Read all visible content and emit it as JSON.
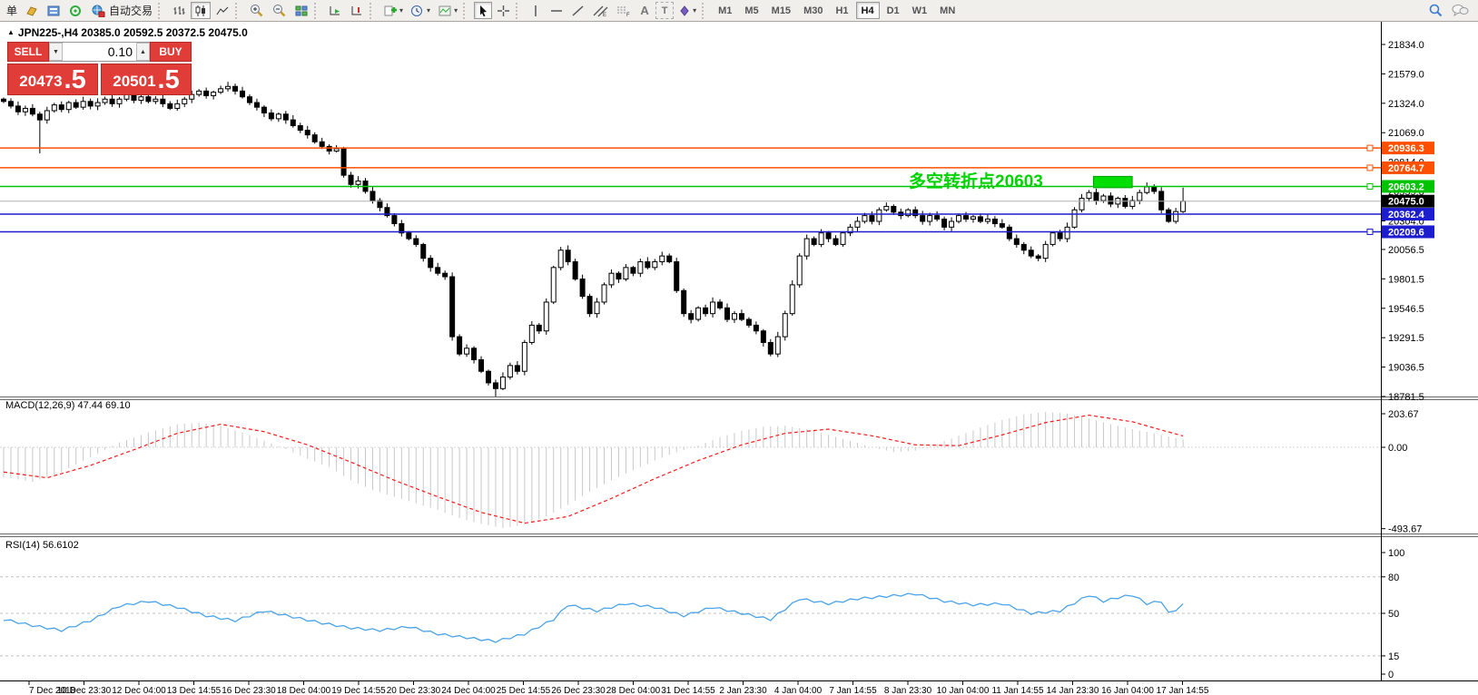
{
  "icons": {
    "dropdown": "▾",
    "collapse": "▲",
    "vol_down": "▼",
    "vol_up": "▲",
    "text_tool": "A",
    "label_tool": "T"
  },
  "toolbar": {
    "new_order_label": "单",
    "autotrading_label": "自动交易",
    "timeframes": [
      "M1",
      "M5",
      "M15",
      "M30",
      "H1",
      "H4",
      "D1",
      "W1",
      "MN"
    ],
    "active_timeframe": "H4"
  },
  "chart": {
    "title": "JPN225-,H4  20385.0 20592.5 20372.5 20475.0",
    "symbol": "JPN225-",
    "timeframe": "H4"
  },
  "trade_panel": {
    "sell_label": "SELL",
    "buy_label": "BUY",
    "volume": "0.10",
    "sell_price_int": "20473",
    "sell_price_dec": ".5",
    "buy_price_int": "20501",
    "buy_price_dec": ".5"
  },
  "annotation": {
    "text": "多空转折点20603",
    "color": "#00d300"
  },
  "indicators": {
    "macd_label": "MACD(12,26,9) 47.44 69.10",
    "rsi_label": "RSI(14) 56.6102"
  },
  "chart_data": [
    {
      "type": "candlestick",
      "title": "JPN225-,H4",
      "last_ohlc": {
        "open": 20385.0,
        "high": 20592.5,
        "low": 20372.5,
        "close": 20475.0
      },
      "closes": [
        21340,
        21300,
        21250,
        21280,
        21230,
        21180,
        21260,
        21310,
        21270,
        21330,
        21290,
        21340,
        21300,
        21330,
        21360,
        21320,
        21360,
        21400,
        21350,
        21380,
        21340,
        21360,
        21320,
        21280,
        21320,
        21360,
        21400,
        21430,
        21390,
        21420,
        21450,
        21470,
        21430,
        21380,
        21330,
        21290,
        21240,
        21190,
        21230,
        21180,
        21130,
        21090,
        21050,
        20990,
        20950,
        20910,
        20930,
        20700,
        20620,
        20650,
        20560,
        20480,
        20420,
        20350,
        20280,
        20200,
        20150,
        20100,
        19980,
        19900,
        19850,
        19820,
        19300,
        19150,
        19200,
        19100,
        19000,
        18900,
        18850,
        18950,
        19050,
        19000,
        19250,
        19400,
        19350,
        19600,
        19900,
        20050,
        19950,
        19800,
        19650,
        19500,
        19600,
        19750,
        19850,
        19800,
        19900,
        19850,
        19950,
        19900,
        19950,
        20000,
        19950,
        19700,
        19500,
        19450,
        19550,
        19500,
        19600,
        19550,
        19450,
        19500,
        19450,
        19400,
        19350,
        19250,
        19150,
        19300,
        19500,
        19750,
        20000,
        20150,
        20100,
        20200,
        20150,
        20100,
        20200,
        20250,
        20300,
        20350,
        20300,
        20400,
        20430,
        20380,
        20350,
        20400,
        20350,
        20300,
        20350,
        20320,
        20250,
        20300,
        20350,
        20320,
        20340,
        20300,
        20320,
        20280,
        20250,
        20150,
        20100,
        20050,
        20000,
        19980,
        20100,
        20200,
        20150,
        20250,
        20400,
        20500,
        20550,
        20480,
        20520,
        20450,
        20500,
        20430,
        20480,
        20550,
        20600,
        20560,
        20400,
        20300,
        20385,
        20475
      ],
      "long_wicks": [
        {
          "index": 5,
          "low": 20890
        },
        {
          "index": 68,
          "low": 18781.5
        },
        {
          "index": 163,
          "high": 20592.5,
          "low": 20372.5
        }
      ],
      "y_ticks": [
        21834.0,
        21579.0,
        21324.0,
        21069.0,
        20814.0,
        20559.0,
        20304.0,
        20056.5,
        19801.5,
        19546.5,
        19291.5,
        19036.5,
        18781.5
      ],
      "levels": [
        {
          "value": 20936.3,
          "label": "20936.3",
          "color": "#ff5000",
          "handle": true
        },
        {
          "value": 20764.7,
          "label": "20764.7",
          "color": "#ff5000",
          "handle": true
        },
        {
          "value": 20603.2,
          "label": "20603.2",
          "color": "#00c400",
          "handle": true
        },
        {
          "value": 20362.4,
          "label": "20362.4",
          "color": "#1d1dd0",
          "handle": false
        },
        {
          "value": 20209.6,
          "label": "20209.6",
          "color": "#1d1dd0",
          "handle": true
        }
      ],
      "current_price": {
        "value": 20475.0,
        "label": "20475.0",
        "line_color": "#b0b0b0",
        "label_bg": "#000000"
      },
      "highlight_rect": {
        "from_index": 151,
        "to_index": 155.6,
        "price_top": 20690,
        "price_bottom": 20592,
        "color": "#00dd00"
      },
      "x_labels": [
        "7 Dec 2018",
        "10 Dec 23:30",
        "12 Dec 04:00",
        "13 Dec 14:55",
        "16 Dec 23:30",
        "18 Dec 04:00",
        "19 Dec 14:55",
        "20 Dec 23:30",
        "24 Dec 04:00",
        "25 Dec 14:55",
        "26 Dec 23:30",
        "28 Dec 04:00",
        "31 Dec 14:55",
        "2 Jan 23:30",
        "4 Jan 04:00",
        "7 Jan 14:55",
        "8 Jan 23:30",
        "10 Jan 04:00",
        "11 Jan 14:55",
        "14 Jan 23:30",
        "16 Jan 04:00",
        "17 Jan 14:55"
      ]
    },
    {
      "type": "macd",
      "label": "MACD(12,26,9) 47.44 69.10",
      "values_shown": {
        "macd": 47.44,
        "signal": 69.1
      },
      "y_tick_labels": [
        "203.67",
        "0.00",
        "-493.67"
      ],
      "y_tick_values": [
        203.67,
        0,
        -493.67
      ],
      "histogram_anchors": [
        [
          0,
          -180
        ],
        [
          4,
          -210
        ],
        [
          8,
          -150
        ],
        [
          12,
          -60
        ],
        [
          16,
          30
        ],
        [
          20,
          90
        ],
        [
          24,
          140
        ],
        [
          27,
          150
        ],
        [
          30,
          130
        ],
        [
          33,
          90
        ],
        [
          36,
          40
        ],
        [
          39,
          -10
        ],
        [
          42,
          -70
        ],
        [
          45,
          -120
        ],
        [
          48,
          -200
        ],
        [
          51,
          -260
        ],
        [
          54,
          -300
        ],
        [
          57,
          -340
        ],
        [
          60,
          -380
        ],
        [
          63,
          -430
        ],
        [
          66,
          -465
        ],
        [
          69,
          -490
        ],
        [
          72,
          -470
        ],
        [
          75,
          -420
        ],
        [
          78,
          -350
        ],
        [
          81,
          -270
        ],
        [
          84,
          -200
        ],
        [
          87,
          -140
        ],
        [
          90,
          -80
        ],
        [
          93,
          -30
        ],
        [
          96,
          10
        ],
        [
          99,
          60
        ],
        [
          102,
          100
        ],
        [
          105,
          125
        ],
        [
          108,
          130
        ],
        [
          111,
          110
        ],
        [
          114,
          75
        ],
        [
          117,
          40
        ],
        [
          120,
          0
        ],
        [
          123,
          -30
        ],
        [
          126,
          -20
        ],
        [
          129,
          20
        ],
        [
          132,
          70
        ],
        [
          135,
          120
        ],
        [
          138,
          165
        ],
        [
          141,
          200
        ],
        [
          144,
          215
        ],
        [
          147,
          205
        ],
        [
          150,
          175
        ],
        [
          153,
          140
        ],
        [
          156,
          110
        ],
        [
          159,
          85
        ],
        [
          163,
          47
        ]
      ],
      "signal_anchors": [
        [
          0,
          -150
        ],
        [
          6,
          -185
        ],
        [
          12,
          -110
        ],
        [
          18,
          -15
        ],
        [
          24,
          85
        ],
        [
          30,
          140
        ],
        [
          36,
          95
        ],
        [
          42,
          15
        ],
        [
          48,
          -90
        ],
        [
          54,
          -200
        ],
        [
          60,
          -300
        ],
        [
          66,
          -395
        ],
        [
          72,
          -460
        ],
        [
          78,
          -420
        ],
        [
          84,
          -310
        ],
        [
          90,
          -190
        ],
        [
          96,
          -80
        ],
        [
          102,
          15
        ],
        [
          108,
          85
        ],
        [
          114,
          110
        ],
        [
          120,
          70
        ],
        [
          126,
          15
        ],
        [
          132,
          10
        ],
        [
          138,
          75
        ],
        [
          144,
          150
        ],
        [
          150,
          195
        ],
        [
          156,
          155
        ],
        [
          160,
          105
        ],
        [
          163,
          69
        ]
      ],
      "colors": {
        "histogram": "#c9c9c9",
        "signal": "#ff1a1a"
      }
    },
    {
      "type": "line",
      "label": "RSI(14) 56.6102",
      "value_shown": 56.6102,
      "y_tick_labels": [
        "100",
        "80",
        "50",
        "15",
        "0"
      ],
      "y_tick_values": [
        100,
        80,
        50,
        15,
        0
      ],
      "dashed_levels": [
        80,
        50,
        15
      ],
      "ylim": [
        0,
        100
      ],
      "anchors": [
        [
          0,
          45
        ],
        [
          4,
          40
        ],
        [
          8,
          36
        ],
        [
          12,
          44
        ],
        [
          16,
          56
        ],
        [
          20,
          60
        ],
        [
          24,
          55
        ],
        [
          28,
          48
        ],
        [
          32,
          44
        ],
        [
          36,
          52
        ],
        [
          40,
          47
        ],
        [
          44,
          42
        ],
        [
          48,
          38
        ],
        [
          52,
          36
        ],
        [
          56,
          39
        ],
        [
          60,
          33
        ],
        [
          64,
          30
        ],
        [
          68,
          27
        ],
        [
          72,
          33
        ],
        [
          76,
          45
        ],
        [
          78,
          57
        ],
        [
          82,
          52
        ],
        [
          86,
          58
        ],
        [
          90,
          55
        ],
        [
          94,
          48
        ],
        [
          98,
          55
        ],
        [
          102,
          50
        ],
        [
          106,
          45
        ],
        [
          110,
          62
        ],
        [
          114,
          58
        ],
        [
          118,
          62
        ],
        [
          122,
          64
        ],
        [
          126,
          66
        ],
        [
          130,
          60
        ],
        [
          134,
          57
        ],
        [
          138,
          58
        ],
        [
          142,
          50
        ],
        [
          146,
          52
        ],
        [
          150,
          65
        ],
        [
          152,
          60
        ],
        [
          154,
          63
        ],
        [
          156,
          65
        ],
        [
          158,
          58
        ],
        [
          160,
          60
        ],
        [
          161,
          50
        ],
        [
          162,
          53
        ],
        [
          163,
          57
        ]
      ],
      "color": "#4aa3e8"
    }
  ]
}
